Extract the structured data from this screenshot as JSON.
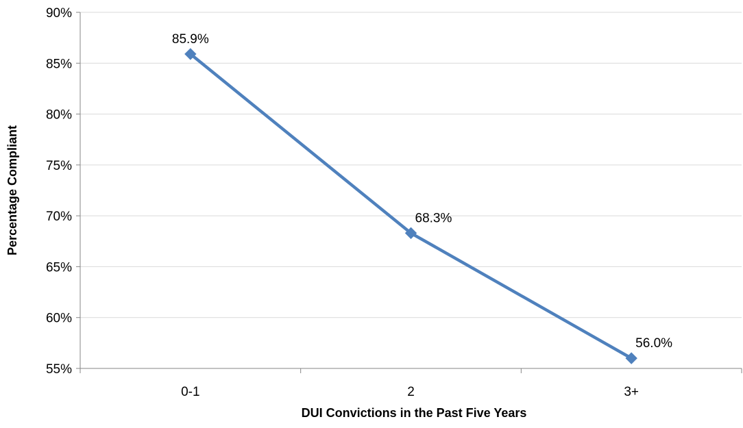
{
  "chart_data": {
    "type": "line",
    "title": "",
    "xlabel": "DUI Convictions in the Past Five Years",
    "ylabel": "Percentage Compliant",
    "categories": [
      "0-1",
      "2",
      "3+"
    ],
    "series": [
      {
        "values": [
          85.9,
          68.3,
          56.0
        ],
        "data_labels": [
          "85.9%",
          "68.3%",
          "56.0%"
        ],
        "color": "#4f81bd",
        "marker": "diamond"
      }
    ],
    "ylim": [
      55,
      90
    ],
    "y_ticks": [
      55,
      60,
      65,
      70,
      75,
      80,
      85,
      90
    ],
    "y_tick_labels": [
      "55%",
      "60%",
      "65%",
      "70%",
      "75%",
      "80%",
      "85%",
      "90%"
    ],
    "grid": true,
    "gridline_color": "#d9d9d9",
    "legend": "none"
  }
}
